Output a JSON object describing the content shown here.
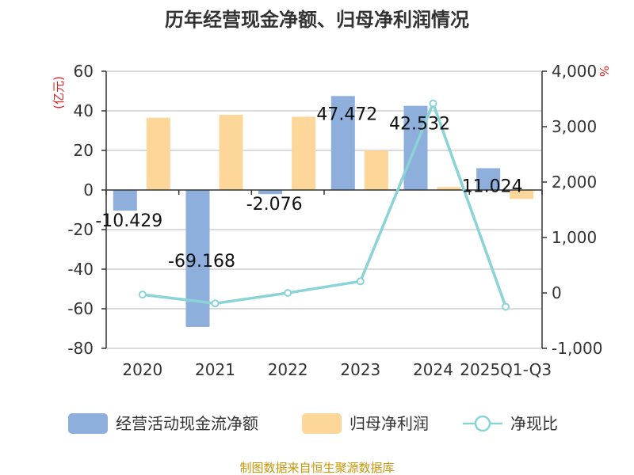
{
  "title": "历年经营现金净额、归母净利润情况",
  "source": "制图数据来自恒生聚源数据库",
  "colors": {
    "cash_flow": "#8eaedb",
    "net_profit": "#fdd69a",
    "ratio": "#8ad3d6",
    "axis": "#333333",
    "grid": "#cfcfcf",
    "unit": "#e02020",
    "source": "#c8960a"
  },
  "chart_data": {
    "type": "bar",
    "title": "历年经营现金净额、归母净利润情况",
    "categories": [
      "2020",
      "2021",
      "2022",
      "2023",
      "2024",
      "2025Q1-Q3"
    ],
    "left_axis": {
      "unit": "(亿元)",
      "ylim": [
        -80,
        60
      ],
      "ticks": [
        "60",
        "40",
        "20",
        "0",
        "-20",
        "-40",
        "-60",
        "-80"
      ],
      "tick_values": [
        60,
        40,
        20,
        0,
        -20,
        -40,
        -60,
        -80
      ]
    },
    "right_axis": {
      "unit": "%",
      "ylim": [
        -1000,
        4000
      ],
      "ticks": [
        "4,000",
        "3,000",
        "2,000",
        "1,000",
        "0",
        "-1,000"
      ],
      "tick_values": [
        4000,
        3000,
        2000,
        1000,
        0,
        -1000
      ]
    },
    "series": [
      {
        "name": "经营活动现金流净额",
        "type": "bar",
        "axis": "left",
        "values": [
          -10.429,
          -69.168,
          -2.076,
          47.472,
          42.532,
          11.024
        ],
        "labels": [
          "-10.429",
          "-69.168",
          "-2.076",
          "47.472",
          "42.532",
          "11.024"
        ]
      },
      {
        "name": "归母净利润",
        "type": "bar",
        "axis": "left",
        "values": [
          36.5,
          38.0,
          37.0,
          20.0,
          1.5,
          -4.5
        ]
      },
      {
        "name": "净现比",
        "type": "line",
        "axis": "right",
        "values": [
          -30,
          -190,
          0,
          210,
          3420,
          -250
        ]
      }
    ],
    "grid": true,
    "legend_position": "bottom"
  }
}
